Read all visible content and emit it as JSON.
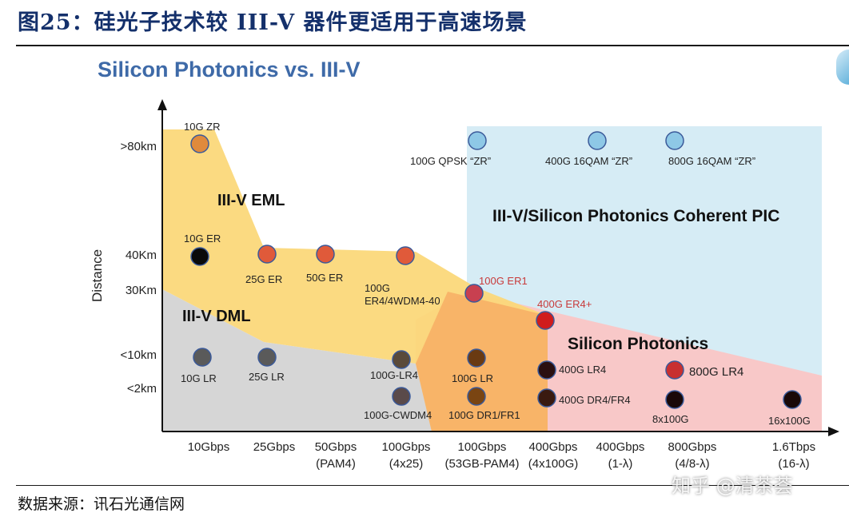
{
  "figure_title": "图25：硅光子技术较 III-V 器件更适用于高速场景",
  "source": "数据来源：讯石光通信网",
  "watermark": "知乎 @清茶荟",
  "chart_data": {
    "type": "scatter",
    "title": "Silicon Photonics vs. III-V",
    "ylabel": "Distance",
    "x_categories": [
      "10Gbps",
      "25Gbps",
      "50Gbps\n(PAM4)",
      "100Gbps\n(4x25)",
      "100Gbps\n(53GB-PAM4)",
      "400Gbps\n(4x100G)",
      "400Gbps\n(1-λ)",
      "800Gbps\n(4/8-λ)",
      "1.6Tbps\n(16-λ)"
    ],
    "y_categories": [
      ">80km",
      "40Km",
      "30Km",
      "<10km",
      "<2km"
    ],
    "regions": [
      {
        "name": "III-V EML",
        "color": "#fbd87a"
      },
      {
        "name": "III-V DML",
        "color": "#d6d6d6"
      },
      {
        "name": "III-V/Silicon Photonics Coherent PIC",
        "color": "#d6ecf5"
      },
      {
        "name": "Silicon Photonics",
        "color": "#f8c8c8"
      }
    ],
    "points": [
      {
        "label": "10G ZR",
        "color": "#e08a3c"
      },
      {
        "label": "10G ER",
        "color": "#0a0a0a"
      },
      {
        "label": "25G ER",
        "color": "#e05a3a"
      },
      {
        "label": "50G ER",
        "color": "#e05a3a"
      },
      {
        "label": "100G\nER4/4WDM4-40",
        "color": "#e05a3a"
      },
      {
        "label": "100G ER1",
        "color": "#c84050"
      },
      {
        "label": "400G ER4+",
        "color": "#d01c1c"
      },
      {
        "label": "100G QPSK “ZR”",
        "color": "#8ec8e6"
      },
      {
        "label": "400G 16QAM “ZR”",
        "color": "#8ec8e6"
      },
      {
        "label": "800G 16QAM “ZR”",
        "color": "#8ec8e6"
      },
      {
        "label": "10G LR",
        "color": "#5a5a5a"
      },
      {
        "label": "25G LR",
        "color": "#5a5a5a"
      },
      {
        "label": "100G-LR4",
        "color": "#5a4a3a"
      },
      {
        "label": "100G-CWDM4",
        "color": "#5a4a4a"
      },
      {
        "label": "100G LR",
        "color": "#6a3a12"
      },
      {
        "label": "100G DR1/FR1",
        "color": "#7a4512"
      },
      {
        "label": "400G LR4",
        "color": "#2a1010"
      },
      {
        "label": "400G DR4/FR4",
        "color": "#3a1a10"
      },
      {
        "label": "800G LR4",
        "color": "#c83030"
      },
      {
        "label": "8x100G",
        "color": "#1a0808"
      },
      {
        "label": "16x100G",
        "color": "#1a0808"
      }
    ]
  }
}
